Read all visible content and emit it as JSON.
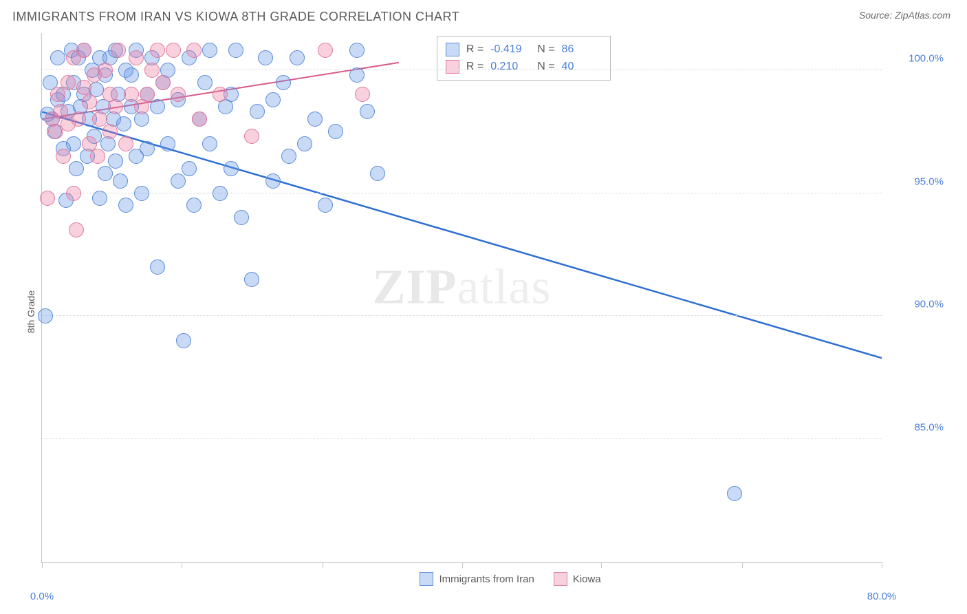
{
  "title": "IMMIGRANTS FROM IRAN VS KIOWA 8TH GRADE CORRELATION CHART",
  "source": "Source: ZipAtlas.com",
  "ylabel": "8th Grade",
  "watermark_bold": "ZIP",
  "watermark_rest": "atlas",
  "chart": {
    "type": "scatter",
    "xlim": [
      0,
      80
    ],
    "ylim": [
      80,
      101.5
    ],
    "x_ticks": [
      0,
      13.3,
      26.7,
      40,
      53.3,
      66.7,
      80
    ],
    "x_tick_labels": {
      "first": "0.0%",
      "last": "80.0%"
    },
    "y_ticks": [
      85.0,
      90.0,
      95.0,
      100.0
    ],
    "y_tick_labels": [
      "85.0%",
      "90.0%",
      "95.0%",
      "100.0%"
    ],
    "grid_color": "#dcdcdc",
    "axis_color": "#c7c7c7",
    "background_color": "#ffffff",
    "marker_radius": 11,
    "series": [
      {
        "name": "Immigrants from Iran",
        "color_fill": "rgba(100,150,230,0.35)",
        "color_stroke": "#5a8ad6",
        "R": "-0.419",
        "N": "86",
        "trend": {
          "x1": 0,
          "y1": 98.3,
          "x2": 80,
          "y2": 88.3,
          "color": "#2d6fd4",
          "width": 2.5
        },
        "points": [
          [
            0.3,
            90.0
          ],
          [
            0.5,
            98.2
          ],
          [
            0.8,
            99.5
          ],
          [
            1.0,
            98.0
          ],
          [
            1.2,
            97.5
          ],
          [
            1.5,
            100.5
          ],
          [
            1.5,
            98.8
          ],
          [
            2.0,
            99.0
          ],
          [
            2.0,
            96.8
          ],
          [
            2.3,
            94.7
          ],
          [
            2.5,
            98.3
          ],
          [
            2.8,
            100.8
          ],
          [
            3.0,
            97.0
          ],
          [
            3.0,
            99.5
          ],
          [
            3.3,
            96.0
          ],
          [
            3.5,
            100.5
          ],
          [
            3.7,
            98.5
          ],
          [
            4.0,
            99.0
          ],
          [
            4.0,
            100.8
          ],
          [
            4.3,
            96.5
          ],
          [
            4.5,
            98.0
          ],
          [
            4.8,
            100.0
          ],
          [
            5.0,
            97.3
          ],
          [
            5.2,
            99.2
          ],
          [
            5.5,
            94.8
          ],
          [
            5.5,
            100.5
          ],
          [
            5.8,
            98.5
          ],
          [
            6.0,
            95.8
          ],
          [
            6.0,
            99.8
          ],
          [
            6.3,
            97.0
          ],
          [
            6.5,
            100.5
          ],
          [
            6.8,
            98.0
          ],
          [
            7.0,
            96.3
          ],
          [
            7.0,
            100.8
          ],
          [
            7.3,
            99.0
          ],
          [
            7.5,
            95.5
          ],
          [
            7.8,
            97.8
          ],
          [
            8.0,
            100.0
          ],
          [
            8.0,
            94.5
          ],
          [
            8.5,
            98.5
          ],
          [
            8.5,
            99.8
          ],
          [
            9.0,
            96.5
          ],
          [
            9.0,
            100.8
          ],
          [
            9.5,
            98.0
          ],
          [
            9.5,
            95.0
          ],
          [
            10.0,
            99.0
          ],
          [
            10.0,
            96.8
          ],
          [
            10.5,
            100.5
          ],
          [
            11.0,
            98.5
          ],
          [
            11.0,
            92.0
          ],
          [
            11.5,
            99.5
          ],
          [
            12.0,
            97.0
          ],
          [
            12.0,
            100.0
          ],
          [
            13.0,
            95.5
          ],
          [
            13.0,
            98.8
          ],
          [
            13.5,
            89.0
          ],
          [
            14.0,
            100.5
          ],
          [
            14.0,
            96.0
          ],
          [
            14.5,
            94.5
          ],
          [
            15.0,
            98.0
          ],
          [
            15.5,
            99.5
          ],
          [
            16.0,
            97.0
          ],
          [
            16.0,
            100.8
          ],
          [
            17.0,
            95.0
          ],
          [
            17.5,
            98.5
          ],
          [
            18.0,
            99.0
          ],
          [
            18.0,
            96.0
          ],
          [
            18.5,
            100.8
          ],
          [
            19.0,
            94.0
          ],
          [
            20.0,
            91.5
          ],
          [
            20.5,
            98.3
          ],
          [
            21.3,
            100.5
          ],
          [
            22.0,
            98.8
          ],
          [
            22.0,
            95.5
          ],
          [
            23.0,
            99.5
          ],
          [
            23.5,
            96.5
          ],
          [
            24.3,
            100.5
          ],
          [
            25.0,
            97.0
          ],
          [
            26.0,
            98.0
          ],
          [
            27.0,
            94.5
          ],
          [
            28.0,
            97.5
          ],
          [
            30.0,
            99.8
          ],
          [
            30.0,
            100.8
          ],
          [
            31.0,
            98.3
          ],
          [
            32.0,
            95.8
          ],
          [
            66.0,
            82.8
          ]
        ]
      },
      {
        "name": "Kiowa",
        "color_fill": "rgba(235,120,160,0.35)",
        "color_stroke": "#e07aa0",
        "R": "0.210",
        "N": "40",
        "trend": {
          "x1": 0,
          "y1": 98.0,
          "x2": 34,
          "y2": 100.3,
          "color": "#d85a8a",
          "width": 2
        },
        "points": [
          [
            0.5,
            94.8
          ],
          [
            1.0,
            98.0
          ],
          [
            1.3,
            97.5
          ],
          [
            1.5,
            99.0
          ],
          [
            1.8,
            98.3
          ],
          [
            2.0,
            96.5
          ],
          [
            2.5,
            97.8
          ],
          [
            2.5,
            99.5
          ],
          [
            3.0,
            100.5
          ],
          [
            3.0,
            95.0
          ],
          [
            3.3,
            93.5
          ],
          [
            3.5,
            98.0
          ],
          [
            4.0,
            99.3
          ],
          [
            4.0,
            100.8
          ],
          [
            4.5,
            97.0
          ],
          [
            4.5,
            98.7
          ],
          [
            5.0,
            99.8
          ],
          [
            5.3,
            96.5
          ],
          [
            5.5,
            98.0
          ],
          [
            6.0,
            100.0
          ],
          [
            6.5,
            99.0
          ],
          [
            6.5,
            97.5
          ],
          [
            7.0,
            98.5
          ],
          [
            7.3,
            100.8
          ],
          [
            8.0,
            97.0
          ],
          [
            8.5,
            99.0
          ],
          [
            9.0,
            100.5
          ],
          [
            9.5,
            98.5
          ],
          [
            10.0,
            99.0
          ],
          [
            10.5,
            100.0
          ],
          [
            11.0,
            100.8
          ],
          [
            11.5,
            99.5
          ],
          [
            12.5,
            100.8
          ],
          [
            13.0,
            99.0
          ],
          [
            14.5,
            100.8
          ],
          [
            15.0,
            98.0
          ],
          [
            17.0,
            99.0
          ],
          [
            20.0,
            97.3
          ],
          [
            27.0,
            100.8
          ],
          [
            30.5,
            99.0
          ]
        ]
      }
    ],
    "legend_stats_labels": {
      "R": "R =",
      "N": "N ="
    },
    "bottom_legend": [
      "Immigrants from Iran",
      "Kiowa"
    ]
  }
}
